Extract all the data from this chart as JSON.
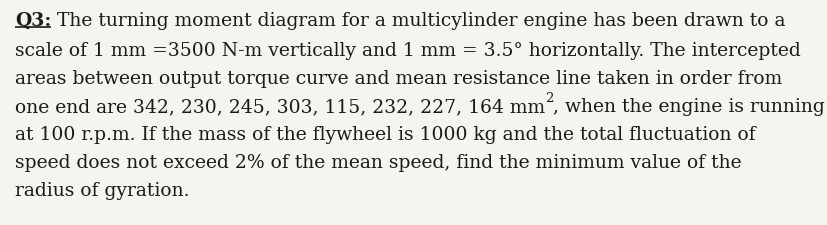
{
  "line1_prefix": "Q3:",
  "line1_rest": " The turning moment diagram for a multicylinder engine has been drawn to a",
  "line2": "scale of 1 mm =3500 N-m vertically and 1 mm = 3.5° horizontally. The intercepted",
  "line3": "areas between output torque curve and mean resistance line taken in order from",
  "line4_pre": "one end are 342, 230, 245, 303, 115, 232, 227, 164 mm",
  "line4_sup": "2",
  "line4_post": ", when the engine is running",
  "line5": "at 100 r.p.m. If the mass of the flywheel is 1000 kg and the total fluctuation of",
  "line6": "speed does not exceed 2% of the mean speed, find the minimum value of the",
  "line7": "radius of gyration.",
  "font_size": 13.5,
  "font_family": "DejaVu Serif",
  "text_color": "#1a1a1a",
  "background_color": "#f5f5f0",
  "figwidth": 8.28,
  "figheight": 2.25,
  "dpi": 100
}
